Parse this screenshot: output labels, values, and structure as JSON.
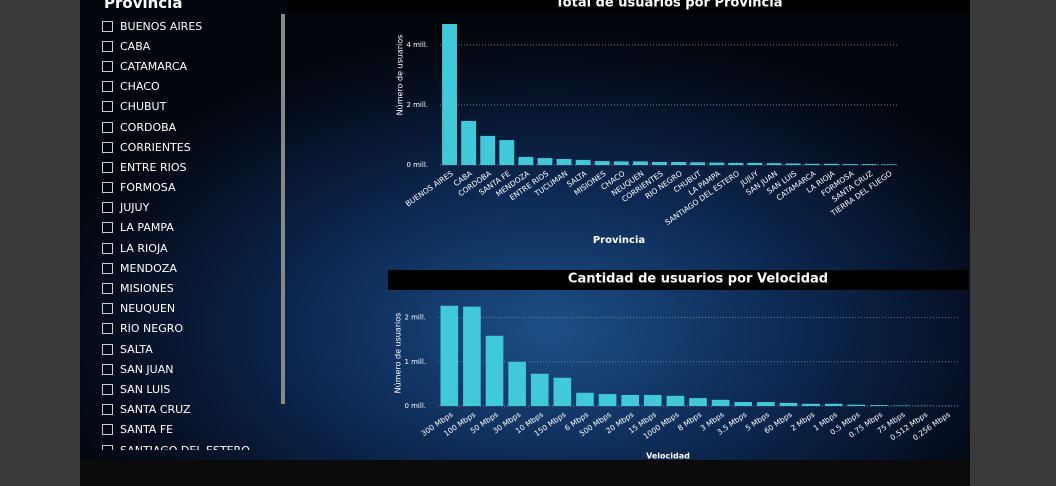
{
  "slicer": {
    "title": "Provincia",
    "items": [
      "BUENOS AIRES",
      "CABA",
      "CATAMARCA",
      "CHACO",
      "CHUBUT",
      "CORDOBA",
      "CORRIENTES",
      "ENTRE RIOS",
      "FORMOSA",
      "JUJUY",
      "LA PAMPA",
      "LA RIOJA",
      "MENDOZA",
      "MISIONES",
      "NEUQUEN",
      "RIO NEGRO",
      "SALTA",
      "SAN JUAN",
      "SAN LUIS",
      "SANTA CRUZ",
      "SANTA FE",
      "SANTIAGO DEL ESTERO"
    ]
  },
  "chart_data": [
    {
      "type": "bar",
      "title": "Total de usuarios por Provincia",
      "x_label": "Provincia",
      "y_label": "Número de usuarios",
      "categories": [
        "BUENOS AIRES",
        "CABA",
        "CORDOBA",
        "SANTA FE",
        "MENDOZA",
        "ENTRE RIOS",
        "TUCUMAN",
        "SALTA",
        "MISIONES",
        "CHACO",
        "NEUQUEN",
        "CORRIENTES",
        "RIO NEGRO",
        "CHUBUT",
        "LA PAMPA",
        "SANTIAGO DEL ESTERO",
        "JUJUY",
        "SAN JUAN",
        "SAN LUIS",
        "CATAMARCA",
        "LA RIOJA",
        "FORMOSA",
        "SANTA CRUZ",
        "TIERRA DEL FUEGO"
      ],
      "values": [
        4700000,
        1470000,
        970000,
        830000,
        270000,
        230000,
        200000,
        170000,
        130000,
        120000,
        120000,
        100000,
        100000,
        90000,
        80000,
        70000,
        70000,
        60000,
        50000,
        40000,
        40000,
        30000,
        30000,
        20000
      ],
      "color": "#41c9d9",
      "ylim": [
        0,
        5000000
      ],
      "yticks": [
        {
          "value": 0,
          "label": "0 mill."
        },
        {
          "value": 2000000,
          "label": "2 mill."
        },
        {
          "value": 4000000,
          "label": "4 mill."
        }
      ],
      "grid": true
    },
    {
      "type": "bar",
      "title": "Cantidad de usuarios por Velocidad",
      "x_label": "Velocidad",
      "y_label": "Número de usuarios",
      "categories": [
        "300 Mbps",
        "100 Mbps",
        "50 Mbps",
        "30 Mbps",
        "10 Mbps",
        "150 Mbps",
        "6 Mbps",
        "500 Mbps",
        "20 Mbps",
        "15 Mbps",
        "1000 Mbps",
        "8 Mbps",
        "3 Mbps",
        "3.5 Mbps",
        "5 Mbps",
        "60 Mbps",
        "2 Mbps",
        "1 Mbps",
        "0.5 Mbps",
        "0.75 Mbps",
        "75 Mbps",
        "0.512 Mbps",
        "0.256 Mbps"
      ],
      "values": [
        2270000,
        2250000,
        1590000,
        1000000,
        730000,
        640000,
        300000,
        270000,
        250000,
        250000,
        230000,
        180000,
        140000,
        90000,
        90000,
        70000,
        50000,
        50000,
        30000,
        20000,
        10000,
        5000,
        3000
      ],
      "color": "#41c9d9",
      "ylim": [
        0,
        2400000
      ],
      "yticks": [
        {
          "value": 0,
          "label": "0 mill."
        },
        {
          "value": 1000000,
          "label": "1 mill."
        },
        {
          "value": 2000000,
          "label": "2 mill."
        }
      ],
      "grid": true
    }
  ]
}
